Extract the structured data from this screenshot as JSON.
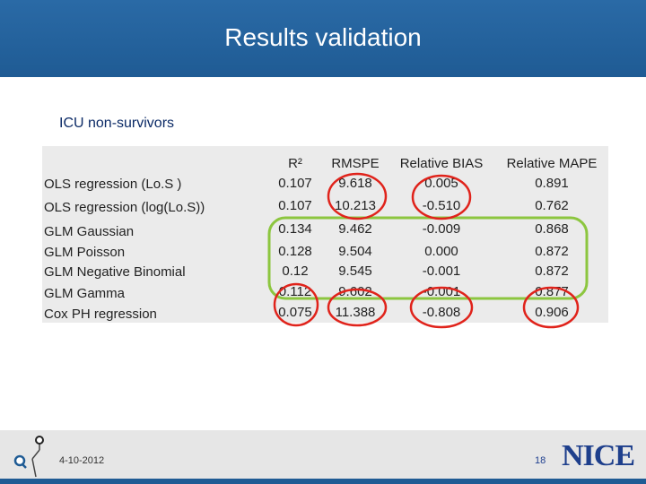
{
  "header": {
    "title": "Results validation"
  },
  "subtitle": "ICU non-survivors",
  "table": {
    "columns": [
      "R²",
      "RMSPE",
      "Relative BIAS",
      "Relative MAPE"
    ],
    "rows": [
      {
        "label": "OLS regression (Lo.S )",
        "values": [
          "0.107",
          "9.618",
          "0.005",
          "0.891"
        ]
      },
      {
        "label": "OLS regression (log(Lo.S))",
        "values": [
          "0.107",
          "10.213",
          "-0.510",
          "0.762"
        ]
      },
      {
        "label": "GLM Gaussian",
        "values": [
          "0.134",
          "9.462",
          "-0.009",
          "0.868"
        ]
      },
      {
        "label": "GLM Poisson",
        "values": [
          "0.128",
          "9.504",
          "0.000",
          "0.872"
        ]
      },
      {
        "label": "GLM Negative Binomial",
        "values": [
          "0.12",
          "9.545",
          "-0.001",
          "0.872"
        ]
      },
      {
        "label": "GLM Gamma",
        "values": [
          "0.112",
          "9.602",
          "-0.001",
          "0.877"
        ]
      },
      {
        "label": "Cox PH regression",
        "values": [
          "0.075",
          "11.388",
          "-0.808",
          "0.906"
        ]
      }
    ]
  },
  "footer": {
    "date": "4-10-2012",
    "page": "18",
    "logo": "NICE"
  },
  "colors": {
    "header": "#1f5b94",
    "highlight_red": "#e0231b",
    "highlight_green": "#8cc63f"
  }
}
